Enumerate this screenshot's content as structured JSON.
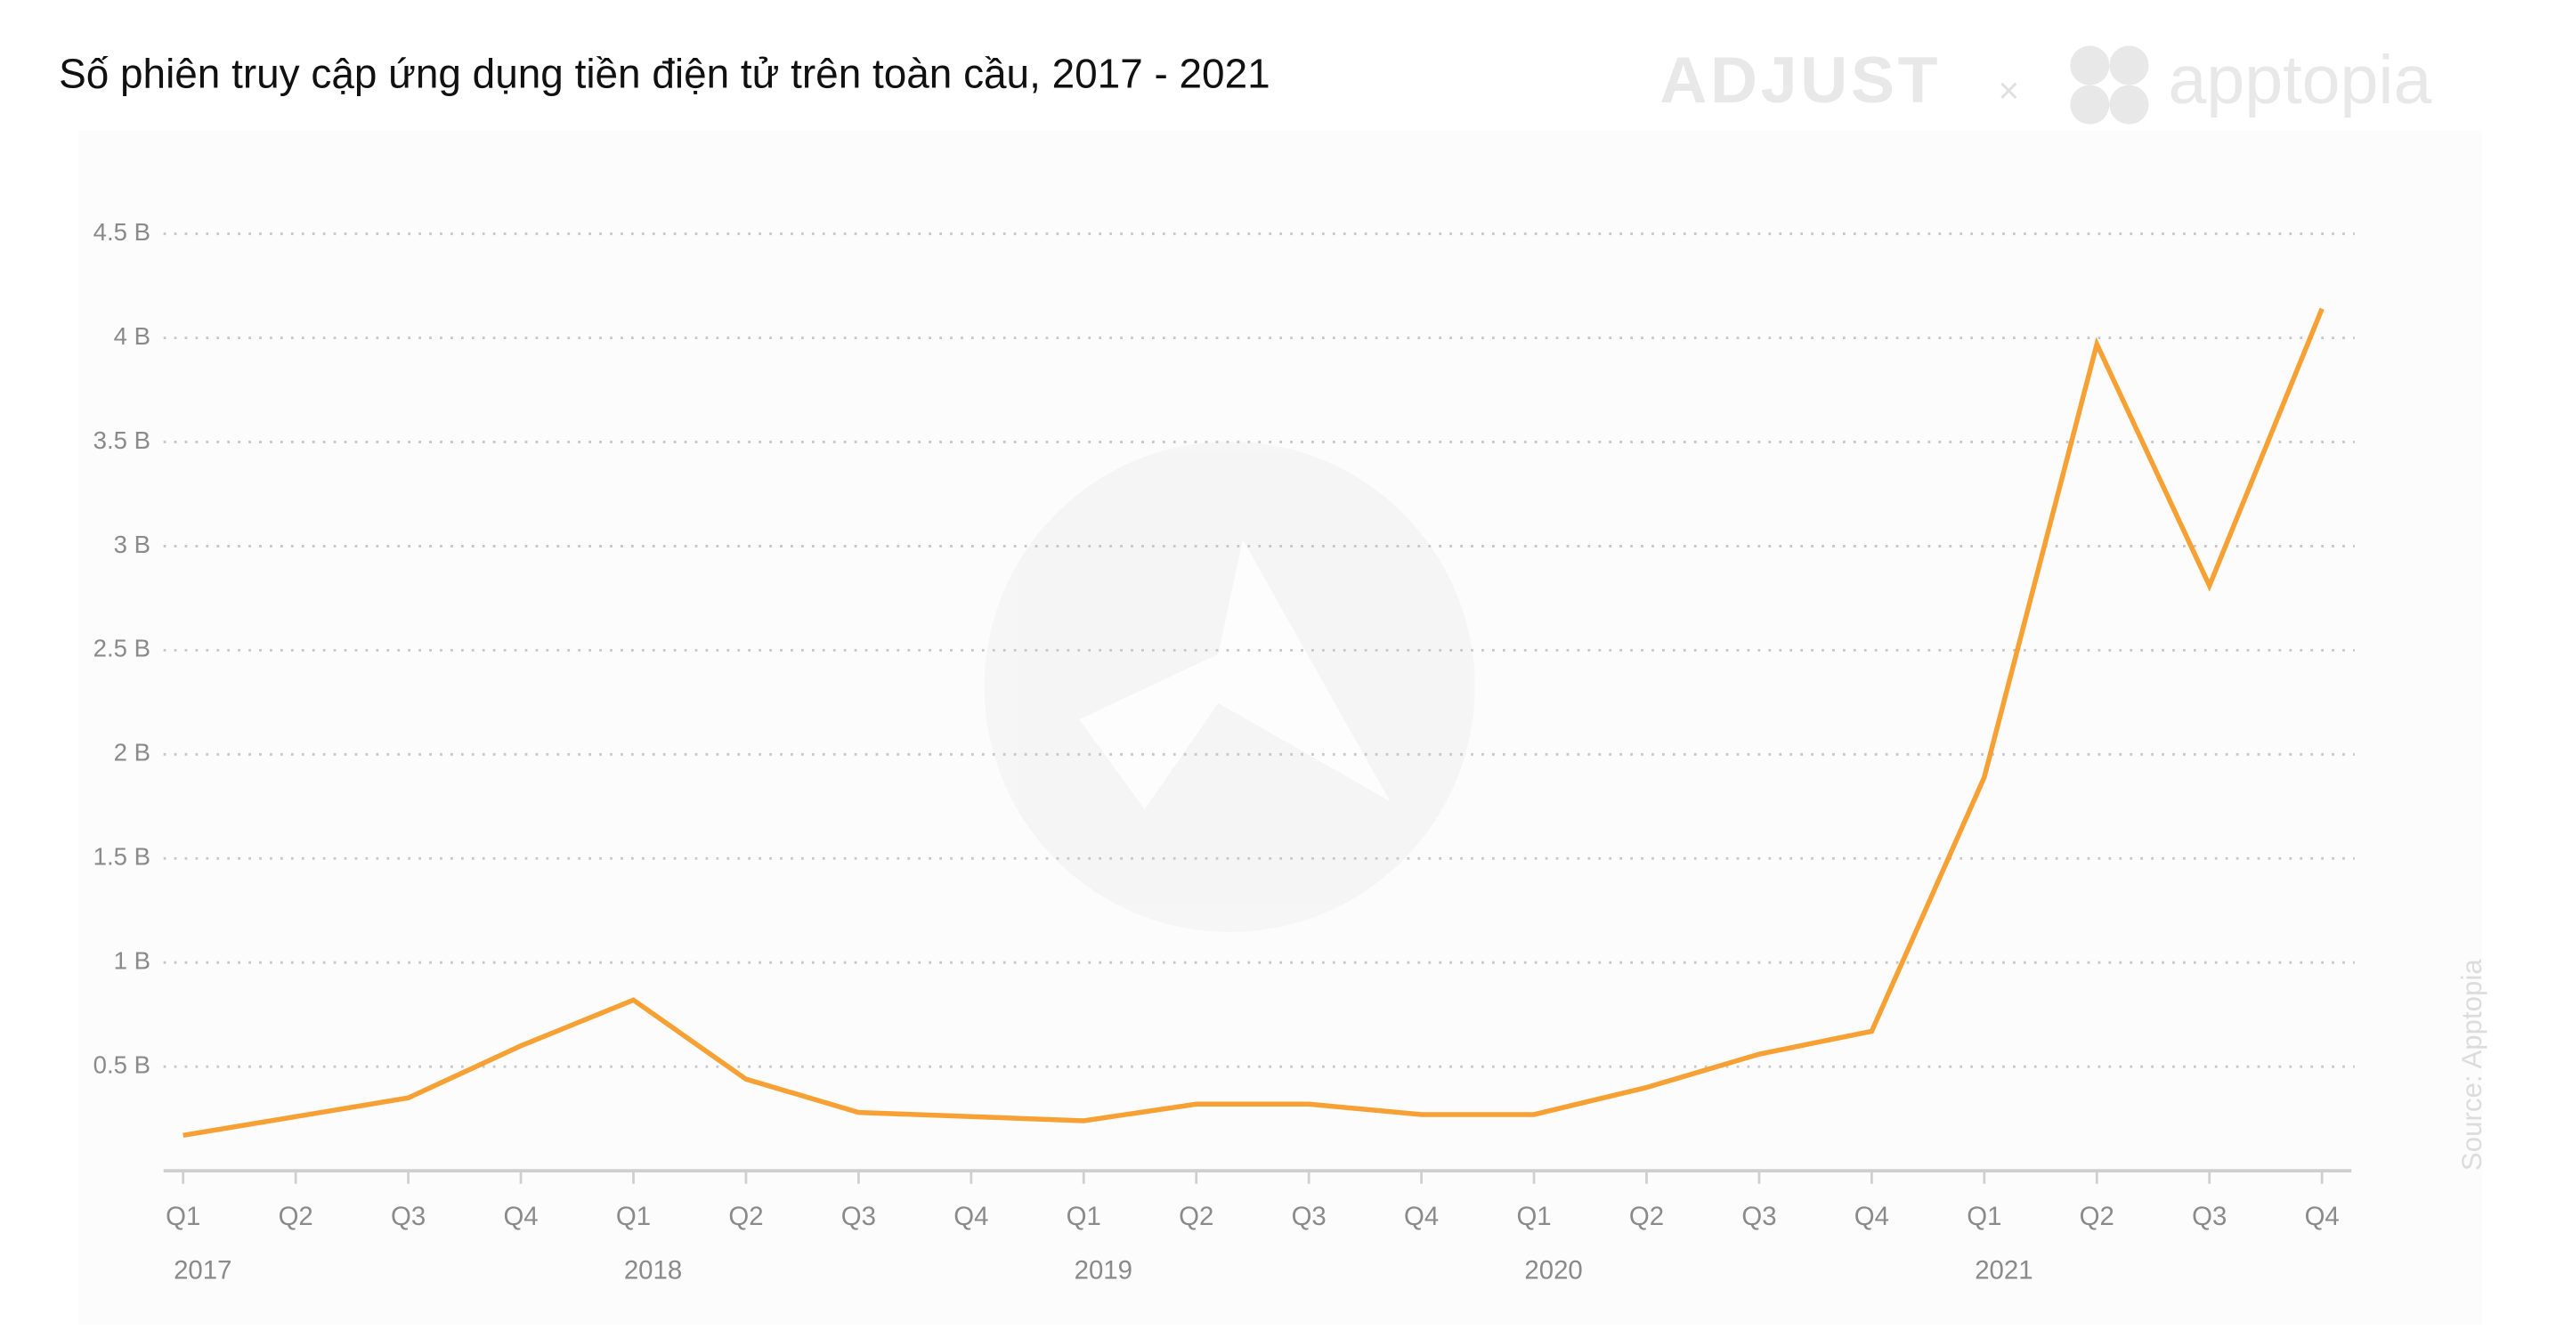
{
  "chart_data": {
    "type": "line",
    "title": "Số phiên truy cập ứng dụng tiền điện tử trên toàn cầu, 2017 - 2021",
    "brand_left": "ADJUST",
    "brand_sep": "×",
    "brand_right": "apptopia",
    "source": "Source: Apptopia",
    "categories": [
      "Q1",
      "Q2",
      "Q3",
      "Q4",
      "Q1",
      "Q2",
      "Q3",
      "Q4",
      "Q1",
      "Q2",
      "Q3",
      "Q4",
      "Q1",
      "Q2",
      "Q3",
      "Q4",
      "Q1",
      "Q2",
      "Q3",
      "Q4"
    ],
    "year_labels": [
      "2017",
      "2018",
      "2019",
      "2020",
      "2021"
    ],
    "series": [
      {
        "color": "#f7a033",
        "values": [
          0.17,
          0.26,
          0.35,
          0.6,
          0.82,
          0.44,
          0.28,
          0.26,
          0.24,
          0.32,
          0.32,
          0.27,
          0.27,
          0.4,
          0.56,
          0.67,
          1.89,
          3.97,
          2.81,
          4.14
        ]
      }
    ],
    "ylim": [
      0,
      4.5
    ],
    "yticks": [
      {
        "value": 0.5,
        "label": "0.5 B"
      },
      {
        "value": 1,
        "label": "1 B"
      },
      {
        "value": 1.5,
        "label": "1.5 B"
      },
      {
        "value": 2,
        "label": "2 B"
      },
      {
        "value": 2.5,
        "label": "2.5 B"
      },
      {
        "value": 3,
        "label": "3 B"
      },
      {
        "value": 3.5,
        "label": "3.5 B"
      },
      {
        "value": 4,
        "label": "4 B"
      },
      {
        "value": 4.5,
        "label": "4.5 B"
      }
    ],
    "grid": true
  }
}
